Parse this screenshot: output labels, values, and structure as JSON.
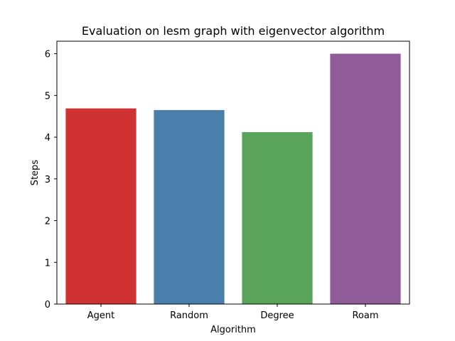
{
  "chart_data": {
    "type": "bar",
    "title": "Evaluation on lesm graph with eigenvector algorithm",
    "xlabel": "Algorithm",
    "ylabel": "Steps",
    "categories": [
      "Agent",
      "Random",
      "Degree",
      "Roam"
    ],
    "values": [
      4.69,
      4.65,
      4.12,
      6.0
    ],
    "colors": [
      "#d03234",
      "#4a7eab",
      "#5aa35a",
      "#8f5b99"
    ],
    "ylim": [
      0,
      6.3
    ],
    "yticks": [
      0,
      1,
      2,
      3,
      4,
      5,
      6
    ],
    "grid": false,
    "legend": "none"
  }
}
